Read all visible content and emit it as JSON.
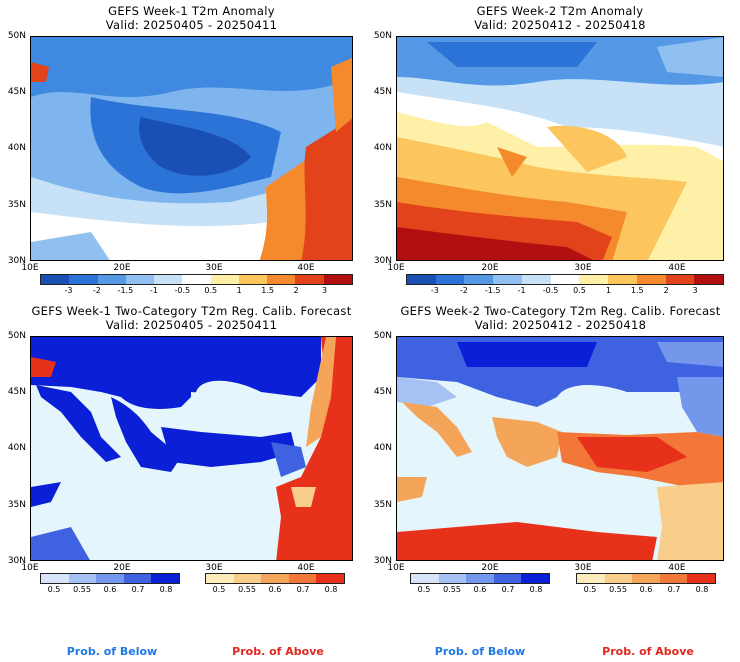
{
  "panels": [
    {
      "title_line1": "GEFS Week-1 T2m Anomaly",
      "title_line2": "Valid: 20250405 - 20250411"
    },
    {
      "title_line1": "GEFS Week-2 T2m Anomaly",
      "title_line2": "Valid: 20250412 - 20250418"
    },
    {
      "title_line1": "GEFS Week-1 Two-Category T2m Reg. Calib. Forecast",
      "title_line2": "Valid: 20250405 - 20250411"
    },
    {
      "title_line1": "GEFS Week-2 Two-Category T2m Reg. Calib. Forecast",
      "title_line2": "Valid: 20250412 - 20250418"
    }
  ],
  "axes": {
    "lat_labels": [
      "50N",
      "45N",
      "40N",
      "35N",
      "30N"
    ],
    "lon_labels": [
      "10E",
      "20E",
      "30E",
      "40E"
    ]
  },
  "anomaly_colorbar": {
    "ticks": [
      "-3",
      "-2",
      "-1.5",
      "-1",
      "-0.5",
      "0.5",
      "1",
      "1.5",
      "2",
      "3"
    ],
    "colors": [
      "#1a4fb4",
      "#2b73d6",
      "#5599e6",
      "#8fc0f0",
      "#c7e2f7",
      "#ffffff",
      "#fff0a8",
      "#fcc55e",
      "#f58a2c",
      "#e2431b",
      "#b21010"
    ]
  },
  "probability_colorbars": {
    "below": {
      "ticks": [
        "0.5",
        "0.55",
        "0.6",
        "0.7",
        "0.8"
      ],
      "colors": [
        "#d7e4fa",
        "#a6c2f4",
        "#7497ec",
        "#3f62e0",
        "#0a1fd6"
      ]
    },
    "above": {
      "ticks": [
        "0.5",
        "0.55",
        "0.6",
        "0.7",
        "0.8"
      ],
      "colors": [
        "#fcebbb",
        "#f9cd8a",
        "#f5a55a",
        "#f27738",
        "#e8311a"
      ]
    }
  },
  "legend_labels": {
    "below": "Prob. of Below",
    "above": "Prob. of Above"
  },
  "colors": {
    "below_text": "#1e78e6",
    "above_text": "#e0281e",
    "water": "#e4f6fb",
    "border": "#000000"
  }
}
